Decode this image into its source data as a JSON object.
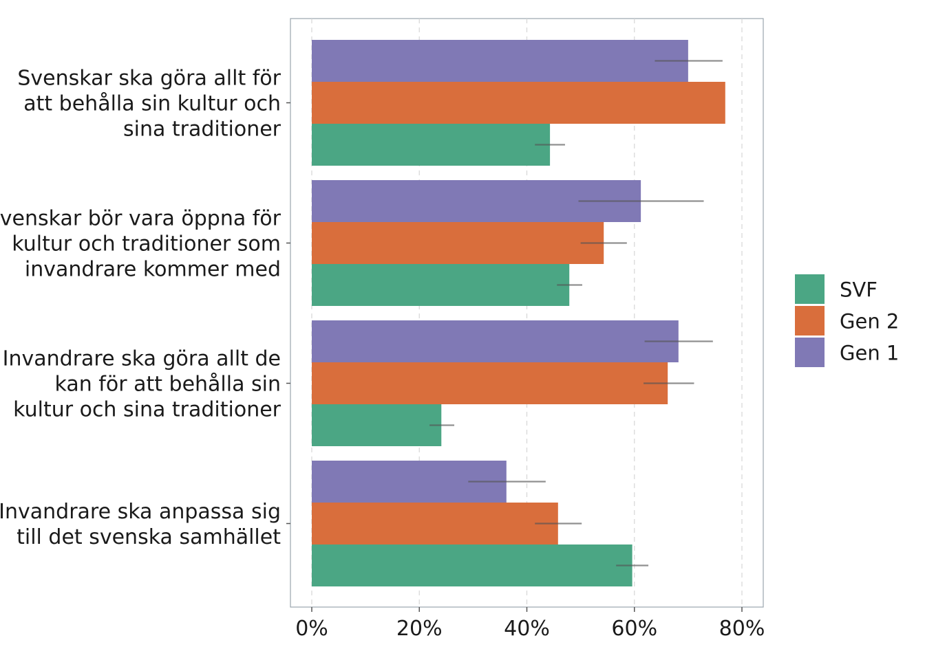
{
  "chart_data": {
    "type": "bar",
    "orientation": "horizontal",
    "categories": [
      [
        "Svenskar ska göra allt för",
        "att behålla sin kultur och",
        "sina traditioner"
      ],
      [
        "Svenskar bör vara öppna för",
        "kultur och traditioner som",
        "invandrare kommer med"
      ],
      [
        "Invandrare ska göra allt de",
        "kan för att behålla sin",
        "kultur och sina traditioner"
      ],
      [
        "Invandrare ska anpassa sig",
        "till det svenska samhället"
      ]
    ],
    "series": [
      {
        "name": "Gen 1",
        "color": "#8079b5",
        "values": [
          70,
          61.2,
          68.2,
          36.2
        ],
        "error_low": [
          63.8,
          49.6,
          61.9,
          29.1
        ],
        "error_high": [
          76.4,
          72.9,
          74.6,
          43.5
        ]
      },
      {
        "name": "Gen 2",
        "color": "#d96e3c",
        "values": [
          76.9,
          54.3,
          66.2,
          45.8
        ],
        "error_low": null,
        "error_high": null,
        "error_low_list": [
          null,
          50.0,
          61.7,
          41.5
        ],
        "error_high_list": [
          null,
          58.6,
          71.1,
          50.2
        ]
      },
      {
        "name": "SVF",
        "color": "#4ba684",
        "values": [
          44.3,
          47.9,
          24.1,
          59.6
        ],
        "error_low": [
          41.5,
          45.6,
          21.9,
          56.6
        ],
        "error_high": [
          47.1,
          50.3,
          26.5,
          62.6
        ]
      }
    ],
    "x_ticks": [
      "0%",
      "20%",
      "40%",
      "60%",
      "80%"
    ],
    "x_tick_values": [
      0,
      20,
      40,
      60,
      80
    ],
    "xlim": [
      -4,
      84
    ],
    "grid": "vertical dashed",
    "legend": {
      "position": "right",
      "items": [
        "SVF",
        "Gen 2",
        "Gen 1"
      ]
    }
  }
}
